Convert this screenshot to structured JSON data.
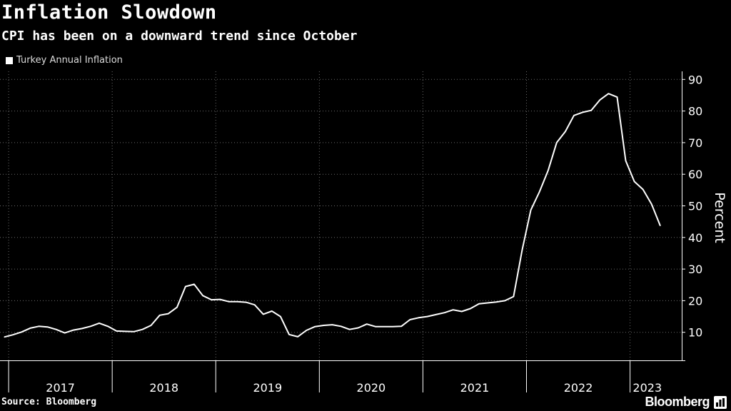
{
  "header": {
    "title": "Inflation Slowdown",
    "subtitle": "CPI has been on a downward trend since October"
  },
  "footer": {
    "source": "Source: Bloomberg",
    "brand": "Bloomberg",
    "brand_icon": "bloomberg-terminal-icon"
  },
  "colors": {
    "background": "#000000",
    "line": "#ffffff",
    "grid": "#6b6b6b"
  },
  "chart_data": {
    "type": "line",
    "title": "Inflation Slowdown",
    "subtitle": "CPI has been on a downward trend since October",
    "xlabel": "",
    "ylabel": "Percent",
    "ylim": [
      0,
      92
    ],
    "yticks": [
      10,
      20,
      30,
      40,
      50,
      60,
      70,
      80,
      90
    ],
    "grid": true,
    "legend_position": "top-left",
    "x_labels": [
      "2017",
      "2018",
      "2019",
      "2020",
      "2021",
      "2022",
      "2023"
    ],
    "x_start": "2016-12",
    "x_end": "2023-04",
    "series": [
      {
        "name": "Turkey Annual Inflation",
        "x": [
          "2016-12",
          "2017-01",
          "2017-02",
          "2017-03",
          "2017-04",
          "2017-05",
          "2017-06",
          "2017-07",
          "2017-08",
          "2017-09",
          "2017-10",
          "2017-11",
          "2017-12",
          "2018-01",
          "2018-02",
          "2018-03",
          "2018-04",
          "2018-05",
          "2018-06",
          "2018-07",
          "2018-08",
          "2018-09",
          "2018-10",
          "2018-11",
          "2018-12",
          "2019-01",
          "2019-02",
          "2019-03",
          "2019-04",
          "2019-05",
          "2019-06",
          "2019-07",
          "2019-08",
          "2019-09",
          "2019-10",
          "2019-11",
          "2019-12",
          "2020-01",
          "2020-02",
          "2020-03",
          "2020-04",
          "2020-05",
          "2020-06",
          "2020-07",
          "2020-08",
          "2020-09",
          "2020-10",
          "2020-11",
          "2020-12",
          "2021-01",
          "2021-02",
          "2021-03",
          "2021-04",
          "2021-05",
          "2021-06",
          "2021-07",
          "2021-08",
          "2021-09",
          "2021-10",
          "2021-11",
          "2021-12",
          "2022-01",
          "2022-02",
          "2022-03",
          "2022-04",
          "2022-05",
          "2022-06",
          "2022-07",
          "2022-08",
          "2022-09",
          "2022-10",
          "2022-11",
          "2022-12",
          "2023-01",
          "2023-02",
          "2023-03",
          "2023-04"
        ],
        "values": [
          8.5,
          9.2,
          10.1,
          11.3,
          11.9,
          11.7,
          10.9,
          9.8,
          10.7,
          11.2,
          11.9,
          12.9,
          11.9,
          10.4,
          10.3,
          10.2,
          10.9,
          12.2,
          15.4,
          15.9,
          17.9,
          24.5,
          25.2,
          21.6,
          20.3,
          20.4,
          19.7,
          19.7,
          19.5,
          18.7,
          15.7,
          16.7,
          15.0,
          9.3,
          8.6,
          10.6,
          11.8,
          12.2,
          12.4,
          11.9,
          10.9,
          11.4,
          12.6,
          11.8,
          11.8,
          11.8,
          11.9,
          14.0,
          14.6,
          15.0,
          15.6,
          16.2,
          17.1,
          16.6,
          17.5,
          19.0,
          19.3,
          19.6,
          20.0,
          21.3,
          36.1,
          48.7,
          54.4,
          61.1,
          70.0,
          73.5,
          78.6,
          79.6,
          80.2,
          83.5,
          85.5,
          84.4,
          64.3,
          57.7,
          55.2,
          50.5,
          43.7
        ]
      }
    ]
  }
}
